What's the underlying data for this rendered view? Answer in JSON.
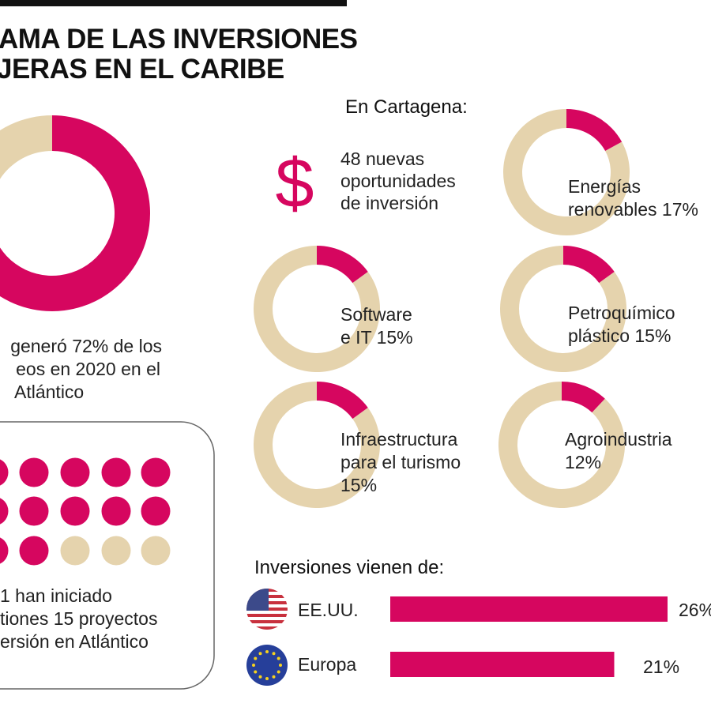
{
  "title": {
    "line1": "AMA DE LAS INVERSIONES",
    "line2": "JERAS EN EL CARIBE"
  },
  "colors": {
    "accent": "#d6065f",
    "neutral": "#e5d3ad",
    "box_border": "#666666"
  },
  "main_donut": {
    "caption": [
      "generó 72% de los",
      "eos en 2020 en el",
      "Atlántico"
    ]
  },
  "dots_box": {
    "caption": [
      "1 han iniciado",
      "tiones 15 proyectos",
      "ersión en Atlántico"
    ]
  },
  "cartagena": {
    "heading": "En Cartagena:",
    "icon": "dollar-icon",
    "opportunities": [
      "48 nuevas",
      "oportunidades",
      "de inversión"
    ],
    "sectors": [
      {
        "label": [
          "Energías",
          "renovables 17%"
        ]
      },
      {
        "label": [
          "Software",
          "e IT 15%"
        ]
      },
      {
        "label": [
          "Petroquímico",
          "plástico 15%"
        ]
      },
      {
        "label": [
          "Infraestructura",
          "para el turismo",
          "15%"
        ]
      },
      {
        "label": [
          "Agroindustria",
          "12%"
        ]
      }
    ]
  },
  "origins": {
    "heading": "Inversiones vienen de:",
    "items": [
      {
        "name": "EE.UU.",
        "value_label": "26%",
        "icon": "us-flag-icon"
      },
      {
        "name": "Europa",
        "value_label": "21%",
        "icon": "eu-flag-icon"
      }
    ]
  },
  "chart_data": [
    {
      "type": "pie",
      "variant": "donut",
      "values": [
        72,
        28
      ],
      "colors": [
        "#d6065f",
        "#e5d3ad"
      ]
    },
    {
      "type": "pie",
      "variant": "dot-grid",
      "visible_filled": 12,
      "visible_empty": 3
    },
    {
      "type": "pie",
      "variant": "donut",
      "categories": [
        "Energías renovables",
        "Software e IT",
        "Petroquímico plástico",
        "Infraestructura para el turismo",
        "Agroindustria"
      ],
      "values": [
        17,
        15,
        15,
        15,
        12
      ]
    },
    {
      "type": "bar",
      "orientation": "horizontal",
      "categories": [
        "EE.UU.",
        "Europa"
      ],
      "values": [
        26,
        21
      ]
    }
  ]
}
